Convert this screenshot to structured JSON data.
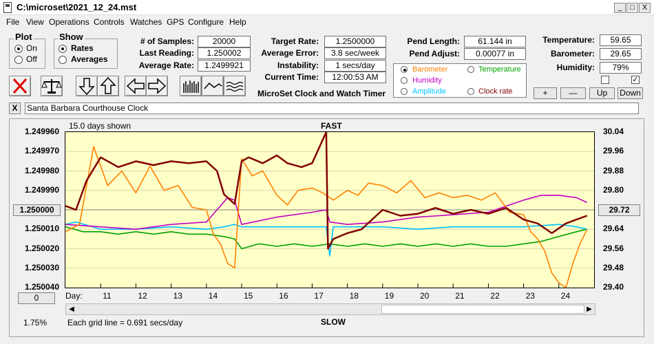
{
  "window": {
    "title": "C:\\microset\\2021_12_24.mst",
    "min": "_",
    "max": "□",
    "close": "X"
  },
  "menu": [
    "File",
    "View",
    "Operations",
    "Controls",
    "Watches",
    "GPS",
    "Configure",
    "Help"
  ],
  "plot_group": {
    "title": "Plot",
    "on": "On",
    "off": "Off",
    "selected": "On"
  },
  "show_group": {
    "title": "Show",
    "rates": "Rates",
    "averages": "Averages",
    "selected": "Rates"
  },
  "samples": {
    "num_label": "# of Samples:",
    "num": "20000",
    "last_label": "Last Reading:",
    "last": "1.250002",
    "avg_label": "Average Rate:",
    "avg": "1.2499921"
  },
  "target": {
    "rate_label": "Target Rate:",
    "rate": "1.2500000",
    "err_label": "Average Error:",
    "err": "3.8 sec/week",
    "inst_label": "Instability:",
    "inst": "1 secs/day",
    "time_label": "Current Time:",
    "time": "12:00:53 AM"
  },
  "pend": {
    "length_label": "Pend Length:",
    "length": "61.144 in",
    "adjust_label": "Pend Adjust:",
    "adjust": "0.00077 in"
  },
  "env": {
    "temp_label": "Temperature:",
    "temp": "59.65",
    "baro_label": "Barometer:",
    "baro": "29.65",
    "hum_label": "Humidity:",
    "hum": "79%",
    "check1": false,
    "check2": true
  },
  "legend": {
    "barometer": "Barometer",
    "temperature": "Temperature",
    "humidity": "Humidity",
    "amplitude": "Amplitude",
    "clockrate": "Clock rate",
    "selected": "Barometer",
    "colors": {
      "barometer": "#ff8000",
      "temperature": "#00a000",
      "humidity": "#c000c0",
      "amplitude": "#00c0ff",
      "clockrate": "#800000"
    }
  },
  "app_caption": "MicroSet Clock and Watch Timer",
  "adjust_buttons": {
    "plus": "+",
    "minus": "—",
    "up": "Up",
    "down": "Down"
  },
  "clock_name": "Santa Barbara Courthouse Clock",
  "clear_btn": "X",
  "chart_data": {
    "type": "line",
    "days_shown": "15.0 days shown",
    "top_label": "FAST",
    "bottom_label": "SLOW",
    "left_ticks": [
      "1.249960",
      "1.249970",
      "1.249980",
      "1.249990",
      "1.250000",
      "1.250010",
      "1.250020",
      "1.250030",
      "1.250040"
    ],
    "right_ticks": [
      "30.04",
      "29.96",
      "29.88",
      "29.80",
      "29.72",
      "29.64",
      "29.56",
      "29.48",
      "29.40"
    ],
    "left_center_button": "1.250000",
    "right_center_button": "29.72",
    "zero_button": "0",
    "x_label": "Day:",
    "days": [
      "11",
      "12",
      "13",
      "14",
      "15",
      "16",
      "17",
      "18",
      "19",
      "20",
      "21",
      "22",
      "23",
      "24"
    ],
    "grid_note": "Each grid line = 0.691 secs/day",
    "percent": "1.75%",
    "series": [
      {
        "name": "Clock rate",
        "color": "#800000",
        "x": [
          10.0,
          10.3,
          10.6,
          11.0,
          11.5,
          12.0,
          12.5,
          13.0,
          13.5,
          14.0,
          14.3,
          14.5,
          14.8,
          15.0,
          15.2,
          15.6,
          16.0,
          16.3,
          16.7,
          17.0,
          17.4,
          17.45,
          17.6,
          18.0,
          18.4,
          19.0,
          19.5,
          20.0,
          20.5,
          21.0,
          21.5,
          22.0,
          22.5,
          23.0,
          23.4,
          23.8,
          24.2,
          24.5,
          24.8
        ],
        "y": [
          1.249998,
          1.25,
          1.249985,
          1.249973,
          1.249978,
          1.249975,
          1.249977,
          1.249975,
          1.249976,
          1.249975,
          1.24998,
          1.249992,
          1.249997,
          1.249975,
          1.249973,
          1.249976,
          1.249972,
          1.249976,
          1.249978,
          1.249976,
          1.24996,
          1.25002,
          1.250015,
          1.250012,
          1.25001,
          1.25,
          1.250003,
          1.250002,
          1.249999,
          1.250002,
          1.25,
          1.250002,
          1.249999,
          1.250005,
          1.250007,
          1.250012,
          1.250007,
          1.250005,
          1.250003
        ]
      },
      {
        "name": "Barometer",
        "color": "#ff8000",
        "x": [
          10.0,
          10.4,
          10.8,
          11.2,
          11.6,
          12.0,
          12.4,
          12.8,
          13.2,
          13.6,
          14.0,
          14.2,
          14.4,
          14.6,
          14.8,
          15.0,
          15.3,
          15.6,
          16.0,
          16.3,
          16.6,
          17.0,
          17.3,
          17.6,
          18.0,
          18.3,
          18.6,
          19.0,
          19.4,
          19.8,
          20.2,
          20.6,
          21.0,
          21.4,
          21.8,
          22.2,
          22.6,
          23.0,
          23.2,
          23.4,
          23.6,
          23.8,
          24.0,
          24.2,
          24.4,
          24.6,
          24.8
        ],
        "y": [
          29.63,
          29.66,
          29.98,
          29.82,
          29.88,
          29.79,
          29.9,
          29.8,
          29.82,
          29.73,
          29.72,
          29.62,
          29.58,
          29.5,
          29.48,
          29.93,
          29.86,
          29.88,
          29.78,
          29.74,
          29.8,
          29.81,
          29.79,
          29.76,
          29.8,
          29.78,
          29.83,
          29.82,
          29.79,
          29.84,
          29.77,
          29.79,
          29.77,
          29.78,
          29.76,
          29.79,
          29.71,
          29.7,
          29.63,
          29.6,
          29.55,
          29.46,
          29.42,
          29.4,
          29.5,
          29.58,
          29.64
        ]
      },
      {
        "name": "Humidity",
        "color": "#c000c0",
        "x": [
          10.0,
          11.0,
          12.0,
          13.0,
          14.0,
          14.3,
          14.6,
          14.8,
          15.0,
          16.0,
          17.0,
          17.4,
          17.5,
          18.0,
          19.0,
          20.0,
          21.0,
          22.0,
          23.0,
          23.5,
          24.0,
          24.5,
          24.8
        ],
        "y": [
          29.66,
          29.65,
          29.64,
          29.66,
          29.67,
          29.72,
          29.77,
          29.76,
          29.66,
          29.69,
          29.71,
          29.72,
          29.67,
          29.66,
          29.67,
          29.69,
          29.7,
          29.71,
          29.76,
          29.78,
          29.78,
          29.77,
          29.75
        ]
      },
      {
        "name": "Amplitude",
        "color": "#00c0ff",
        "x": [
          10.0,
          10.3,
          11.0,
          12.0,
          13.0,
          14.0,
          14.5,
          14.8,
          15.0,
          16.0,
          17.0,
          17.4,
          17.5,
          17.6,
          18.0,
          19.0,
          20.0,
          21.0,
          22.0,
          23.0,
          24.0,
          24.5,
          24.8
        ],
        "y": [
          29.66,
          29.67,
          29.64,
          29.64,
          29.65,
          29.64,
          29.65,
          29.66,
          29.65,
          29.65,
          29.65,
          29.65,
          29.53,
          29.65,
          29.65,
          29.65,
          29.64,
          29.65,
          29.65,
          29.65,
          29.66,
          29.65,
          29.64
        ]
      },
      {
        "name": "Temperature",
        "color": "#00a000",
        "x": [
          10.0,
          10.5,
          11.0,
          11.5,
          12.0,
          12.5,
          13.0,
          13.5,
          14.0,
          14.5,
          14.8,
          15.0,
          15.5,
          16.0,
          16.5,
          17.0,
          17.5,
          18.0,
          18.5,
          19.0,
          19.5,
          20.0,
          20.5,
          21.0,
          21.5,
          22.0,
          22.5,
          23.0,
          23.5,
          24.0,
          24.5,
          24.8
        ],
        "y": [
          29.65,
          29.63,
          29.63,
          29.62,
          29.63,
          29.62,
          29.63,
          29.62,
          29.62,
          29.61,
          29.6,
          29.56,
          29.58,
          29.57,
          29.58,
          29.57,
          29.58,
          29.57,
          29.58,
          29.57,
          29.58,
          29.57,
          29.58,
          29.57,
          29.58,
          29.57,
          29.57,
          29.58,
          29.59,
          29.61,
          29.63,
          29.64
        ]
      }
    ]
  }
}
